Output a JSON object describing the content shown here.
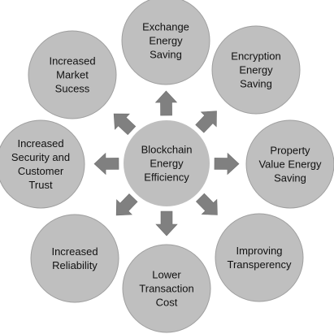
{
  "center": {
    "lines": [
      "Blockchain",
      "Energy",
      "Efficiency"
    ]
  },
  "nodes": [
    {
      "id": "exchange-energy-saving",
      "lines": [
        "Exchange",
        "Energy",
        "Saving"
      ]
    },
    {
      "id": "encryption-energy-saving",
      "lines": [
        "Encryption",
        "Energy",
        "Saving"
      ]
    },
    {
      "id": "property-value-energy-saving",
      "lines": [
        "Property",
        "Value Energy",
        "Saving"
      ]
    },
    {
      "id": "improving-transperency",
      "lines": [
        "Improving",
        "Transperency"
      ]
    },
    {
      "id": "lower-transaction-cost",
      "lines": [
        "Lower",
        "Transaction",
        "Cost"
      ]
    },
    {
      "id": "increased-reliability",
      "lines": [
        "Increased",
        "Reliability"
      ]
    },
    {
      "id": "increased-security-and-customer-trust",
      "lines": [
        "Increased",
        "Security and",
        "Customer",
        "Trust"
      ]
    },
    {
      "id": "increased-market-sucess",
      "lines": [
        "Increased",
        "Market",
        "Sucess"
      ]
    }
  ],
  "colors": {
    "circle_fill": "#bfbfbf",
    "arrow_fill": "#808080",
    "text": "#111111"
  }
}
